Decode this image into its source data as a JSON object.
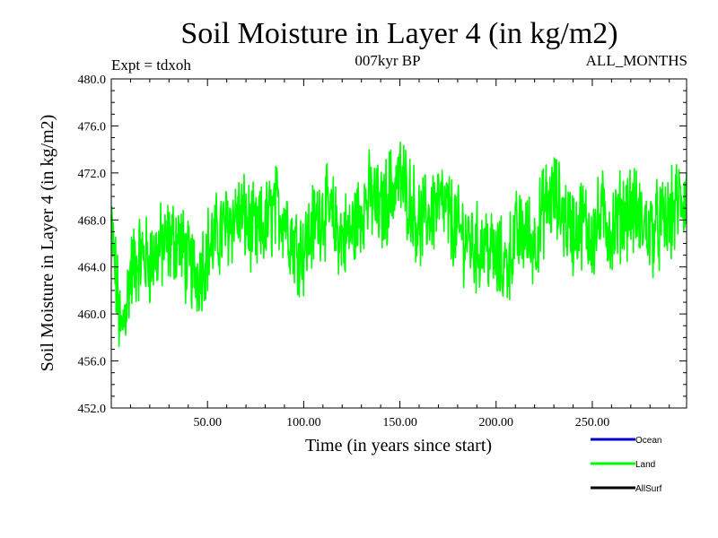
{
  "header": {
    "title": "Soil Moisture in Layer 4 (in kg/m2)",
    "experiment": "Expt = tdxoh",
    "period": "007kyr BP",
    "months": "ALL_MONTHS"
  },
  "chart_data": {
    "type": "line",
    "xlabel": "Time (in years since start)",
    "ylabel": "Soil Moisture in Layer 4 (in kg/m2)",
    "xlim": [
      0,
      299
    ],
    "ylim": [
      452.0,
      480.0
    ],
    "x_tick_labels": [
      "50.00",
      "100.00",
      "150.00",
      "200.00",
      "250.00"
    ],
    "y_tick_labels": [
      "452.0",
      "456.0",
      "460.0",
      "464.0",
      "468.0",
      "472.0",
      "476.0",
      "480.0"
    ],
    "grid": false,
    "legend_position": "bottom-right",
    "legend": [
      {
        "name": "Ocean",
        "color": "#0000cc"
      },
      {
        "name": "Land",
        "color": "#00ff00"
      },
      {
        "name": "AllSurf",
        "color": "#000000"
      }
    ],
    "series": [
      {
        "name": "Land",
        "color": "#00ff00",
        "x": [
          0,
          5,
          10,
          15,
          20,
          25,
          30,
          35,
          40,
          45,
          50,
          55,
          60,
          65,
          70,
          75,
          80,
          85,
          90,
          95,
          100,
          105,
          110,
          115,
          120,
          125,
          130,
          135,
          140,
          145,
          150,
          155,
          160,
          165,
          170,
          175,
          180,
          185,
          190,
          195,
          200,
          205,
          210,
          215,
          220,
          225,
          230,
          235,
          240,
          245,
          250,
          255,
          260,
          265,
          270,
          275,
          280,
          285,
          290,
          295,
          299
        ],
        "values": [
          467.5,
          458.0,
          463.5,
          465.0,
          464.5,
          465.5,
          466.0,
          466.5,
          464.0,
          463.5,
          465.5,
          466.5,
          467.5,
          468.5,
          468.0,
          466.5,
          467.5,
          469.0,
          468.5,
          466.0,
          465.5,
          467.5,
          469.0,
          468.0,
          466.5,
          467.0,
          469.0,
          470.0,
          468.5,
          470.5,
          471.5,
          470.0,
          467.5,
          468.5,
          469.5,
          468.5,
          467.0,
          466.5,
          465.5,
          466.0,
          464.5,
          464.0,
          466.5,
          467.0,
          466.0,
          469.0,
          470.0,
          468.5,
          467.0,
          468.0,
          466.5,
          468.5,
          467.0,
          468.5,
          469.0,
          468.0,
          467.0,
          467.5,
          468.0,
          469.5,
          470.0
        ]
      }
    ]
  }
}
